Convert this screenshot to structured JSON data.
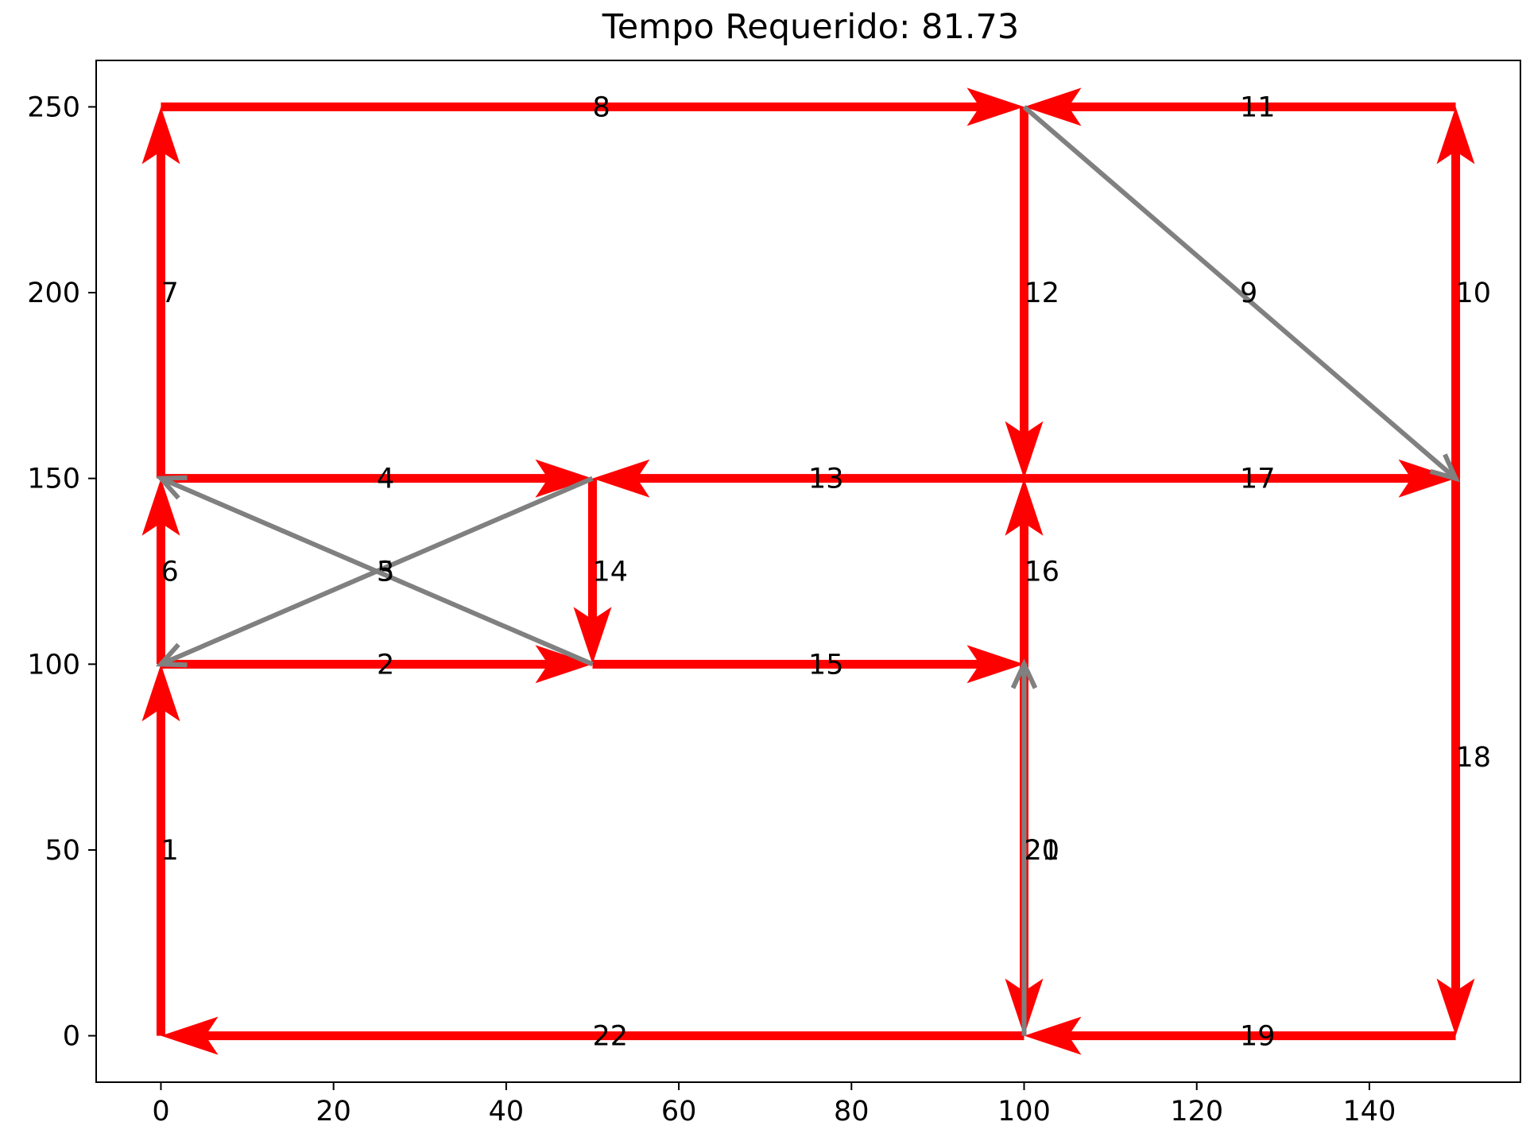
{
  "chart_data": {
    "type": "network",
    "title": "Tempo Requerido: 81.73",
    "xlabel": "",
    "ylabel": "",
    "xlim": [
      -7.5,
      157.5
    ],
    "ylim": [
      -12.5,
      262.5
    ],
    "xticks": [
      0,
      20,
      40,
      60,
      80,
      100,
      120,
      140
    ],
    "yticks": [
      0,
      50,
      100,
      150,
      200,
      250
    ],
    "grid": false,
    "colors": {
      "active": "#ff0000",
      "inactive": "#808080",
      "axes": "#000000"
    },
    "edges": [
      {
        "label": "1",
        "from": [
          0,
          0
        ],
        "to": [
          0,
          100
        ],
        "status": "active"
      },
      {
        "label": "2",
        "from": [
          0,
          100
        ],
        "to": [
          50,
          100
        ],
        "status": "active"
      },
      {
        "label": "3",
        "from": [
          50,
          150
        ],
        "to": [
          0,
          100
        ],
        "status": "inactive"
      },
      {
        "label": "4",
        "from": [
          0,
          150
        ],
        "to": [
          50,
          150
        ],
        "status": "active"
      },
      {
        "label": "5",
        "from": [
          50,
          100
        ],
        "to": [
          0,
          150
        ],
        "status": "inactive"
      },
      {
        "label": "6",
        "from": [
          0,
          100
        ],
        "to": [
          0,
          150
        ],
        "status": "active"
      },
      {
        "label": "7",
        "from": [
          0,
          150
        ],
        "to": [
          0,
          250
        ],
        "status": "active"
      },
      {
        "label": "8",
        "from": [
          0,
          250
        ],
        "to": [
          100,
          250
        ],
        "status": "active"
      },
      {
        "label": "9",
        "from": [
          100,
          250
        ],
        "to": [
          150,
          150
        ],
        "status": "inactive"
      },
      {
        "label": "10",
        "from": [
          150,
          150
        ],
        "to": [
          150,
          250
        ],
        "status": "active"
      },
      {
        "label": "11",
        "from": [
          150,
          250
        ],
        "to": [
          100,
          250
        ],
        "status": "active"
      },
      {
        "label": "12",
        "from": [
          100,
          250
        ],
        "to": [
          100,
          150
        ],
        "status": "active"
      },
      {
        "label": "13",
        "from": [
          100,
          150
        ],
        "to": [
          50,
          150
        ],
        "status": "active"
      },
      {
        "label": "14",
        "from": [
          50,
          150
        ],
        "to": [
          50,
          100
        ],
        "status": "active"
      },
      {
        "label": "15",
        "from": [
          50,
          100
        ],
        "to": [
          100,
          100
        ],
        "status": "active"
      },
      {
        "label": "16",
        "from": [
          100,
          100
        ],
        "to": [
          100,
          150
        ],
        "status": "active"
      },
      {
        "label": "17",
        "from": [
          100,
          150
        ],
        "to": [
          150,
          150
        ],
        "status": "active"
      },
      {
        "label": "18",
        "from": [
          150,
          150
        ],
        "to": [
          150,
          0
        ],
        "status": "active"
      },
      {
        "label": "19",
        "from": [
          150,
          0
        ],
        "to": [
          100,
          0
        ],
        "status": "active"
      },
      {
        "label": "20",
        "from": [
          100,
          100
        ],
        "to": [
          100,
          0
        ],
        "status": "active"
      },
      {
        "label": "21",
        "from": [
          100,
          0
        ],
        "to": [
          100,
          100
        ],
        "status": "inactive"
      },
      {
        "label": "22",
        "from": [
          100,
          0
        ],
        "to": [
          0,
          0
        ],
        "status": "active"
      }
    ]
  }
}
